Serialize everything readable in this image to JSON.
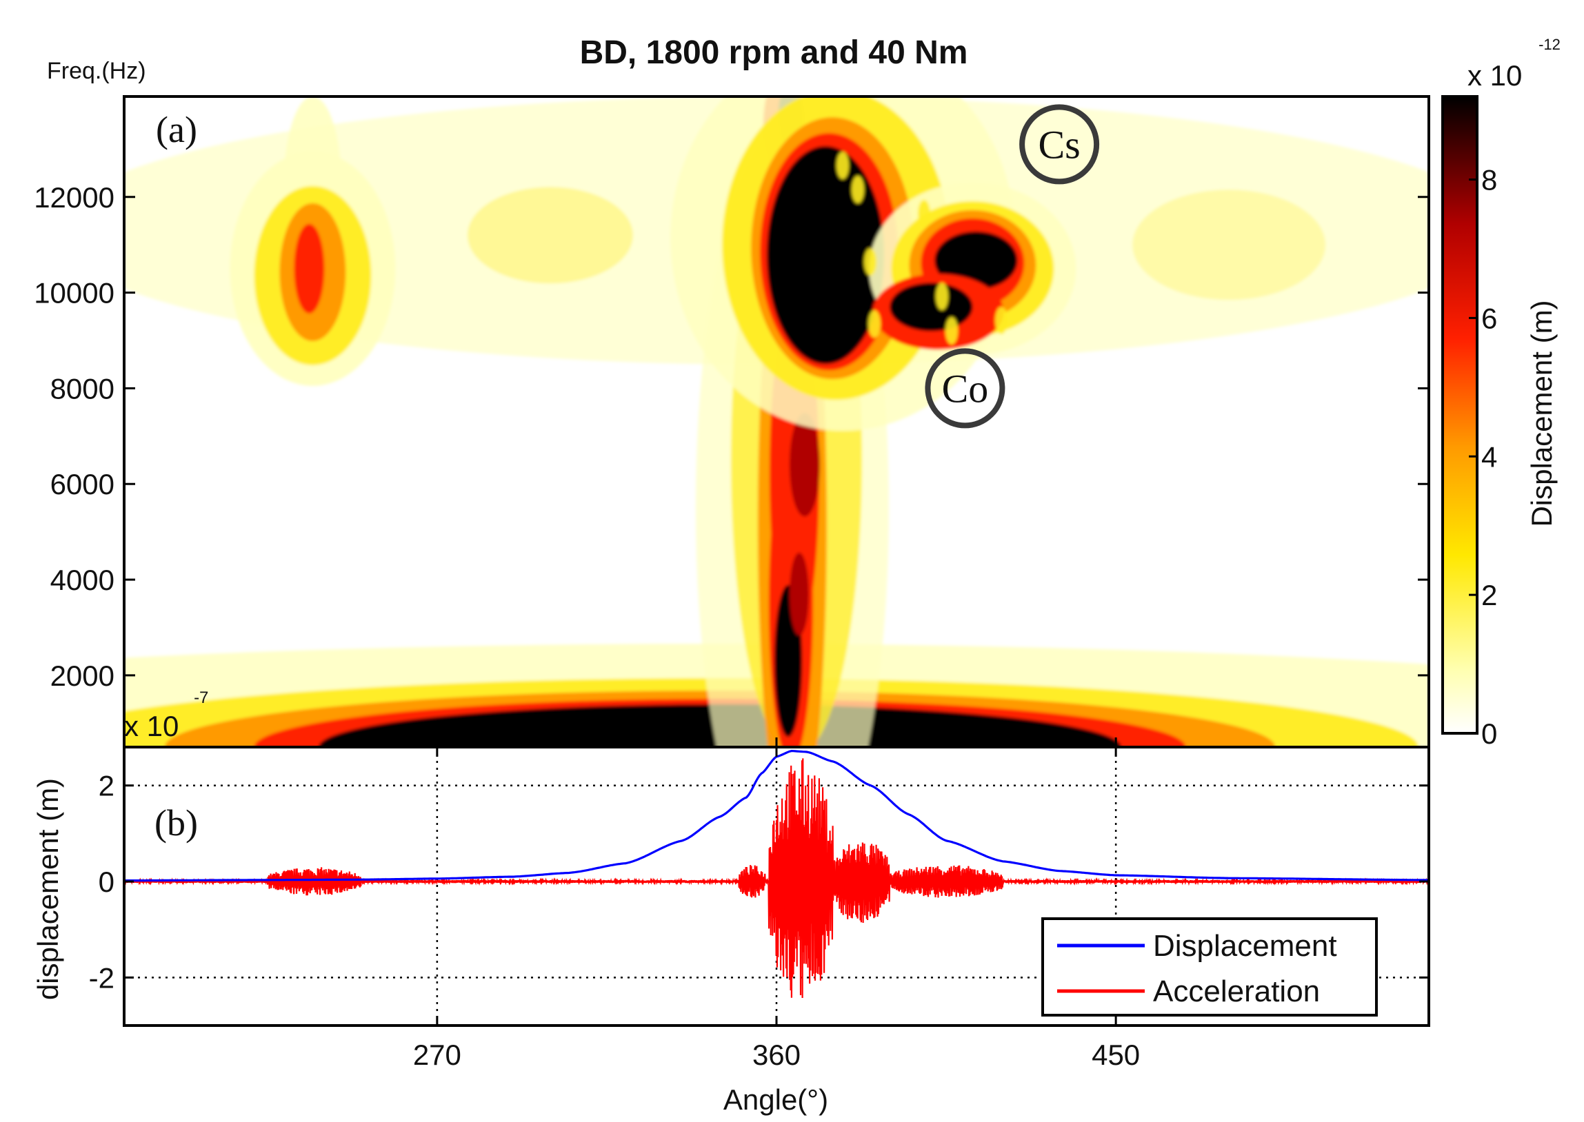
{
  "chart_data": [
    {
      "panel": "(a)",
      "type": "heatmap",
      "title": "BD, 1800 rpm and 40 Nm",
      "ylabel": "Freq.(Hz)",
      "xlim": [
        187,
        533
      ],
      "ylim": [
        500,
        14100
      ],
      "yticks": [
        2000,
        4000,
        6000,
        8000,
        10000,
        12000
      ],
      "ytick_labels": [
        "2000",
        "4000",
        "6000",
        "8000",
        "10000",
        "12000"
      ],
      "colorbar": {
        "label": "Displacement (m)",
        "multiplier_base": "x 10",
        "multiplier_exponent": "-12",
        "range": [
          0,
          9.2
        ],
        "ticks": [
          0,
          2,
          4,
          6,
          8
        ],
        "tick_labels": [
          "0",
          "2",
          "4",
          "6",
          "8"
        ],
        "colormap": [
          "#ffffff",
          "#ffffa0",
          "#ffe800",
          "#ff9a00",
          "#ff2000",
          "#b00000",
          "#000000"
        ]
      },
      "regions": [
        {
          "name": "low-frequency band",
          "x_center": 345,
          "x_halfwidth": 95,
          "y_max_hz": 1500,
          "peak": 9.2
        },
        {
          "name": "main vertical stripe",
          "x_center": 362,
          "x_halfwidth": 8,
          "y_range_hz": [
            500,
            14100
          ],
          "peak": 8.5
        },
        {
          "name": "main upper blob",
          "x_center": 373,
          "y_center_hz": 11000,
          "peak": 9.2
        },
        {
          "name": "right arm",
          "x_center": 412,
          "y_center_hz": 10500,
          "peak": 9.0
        },
        {
          "name": "left blob",
          "x_center": 237,
          "y_center_hz": 10500,
          "peak": 6.5
        }
      ],
      "annotations": [
        {
          "text": "Cs",
          "x": 435,
          "y_hz": 13100
        },
        {
          "text": "Co",
          "x": 410,
          "y_hz": 8000
        }
      ]
    },
    {
      "panel": "(b)",
      "type": "line",
      "xlabel": "Angle(°)",
      "ylabel": "displacement (m)",
      "multiplier_base": "x 10",
      "multiplier_exponent": "-7",
      "xlim": [
        187,
        533
      ],
      "ylim": [
        -3.0,
        2.8
      ],
      "xticks": [
        270,
        360,
        450
      ],
      "xtick_labels": [
        "270",
        "360",
        "450"
      ],
      "yticks": [
        -2,
        0,
        2
      ],
      "ytick_labels": [
        "-2",
        "0",
        "2"
      ],
      "grid": "dotted",
      "legend": {
        "position": "bottom-right"
      },
      "series": [
        {
          "name": "Displacement",
          "color": "#0000ff",
          "points": [
            [
              187,
              0.02
            ],
            [
              220,
              0.03
            ],
            [
              250,
              0.04
            ],
            [
              270,
              0.06
            ],
            [
              290,
              0.1
            ],
            [
              305,
              0.18
            ],
            [
              320,
              0.38
            ],
            [
              335,
              0.85
            ],
            [
              345,
              1.35
            ],
            [
              352,
              1.75
            ],
            [
              356,
              2.25
            ],
            [
              360,
              2.6
            ],
            [
              364,
              2.72
            ],
            [
              368,
              2.7
            ],
            [
              375,
              2.5
            ],
            [
              385,
              2.0
            ],
            [
              395,
              1.4
            ],
            [
              405,
              0.85
            ],
            [
              420,
              0.42
            ],
            [
              435,
              0.22
            ],
            [
              450,
              0.13
            ],
            [
              480,
              0.07
            ],
            [
              533,
              0.03
            ]
          ]
        },
        {
          "name": "Acceleration",
          "color": "#ff0000",
          "bursts": [
            {
              "x_start": 225,
              "x_end": 250,
              "amplitude": 0.3
            },
            {
              "x_start": 350,
              "x_end": 357,
              "amplitude": 0.35
            },
            {
              "x_start": 358,
              "x_end": 375,
              "amplitude": 2.6
            },
            {
              "x_start": 375,
              "x_end": 390,
              "amplitude": 0.9
            },
            {
              "x_start": 390,
              "x_end": 420,
              "amplitude": 0.35
            }
          ]
        }
      ]
    }
  ]
}
